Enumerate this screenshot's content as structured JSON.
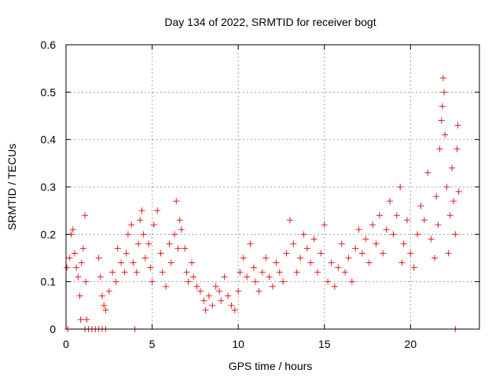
{
  "chart_data": {
    "type": "scatter",
    "title": "Day 134 of 2022, SRMTID for receiver bogt",
    "xlabel": "GPS time / hours",
    "ylabel": "SRMTID / TECUs",
    "xlim": [
      0,
      24
    ],
    "ylim": [
      0,
      0.6
    ],
    "xticks": [
      0,
      5,
      10,
      15,
      20
    ],
    "yticks": [
      0,
      0.1,
      0.2,
      0.3,
      0.4,
      0.5,
      0.6
    ],
    "xtick_labels": [
      "0",
      "5",
      "10",
      "15",
      "20"
    ],
    "ytick_labels": [
      "0",
      "0.1",
      "0.2",
      "0.3",
      "0.4",
      "0.5",
      "0.6"
    ],
    "grid": true,
    "marker": "+",
    "marker_color": "#e41a1c",
    "series": [
      {
        "name": "SRMTID",
        "points": [
          [
            0.05,
            0.13
          ],
          [
            0.1,
            0.0
          ],
          [
            0.2,
            0.15
          ],
          [
            0.3,
            0.2
          ],
          [
            0.4,
            0.21
          ],
          [
            0.5,
            0.16
          ],
          [
            0.6,
            0.13
          ],
          [
            0.7,
            0.11
          ],
          [
            0.8,
            0.07
          ],
          [
            0.85,
            0.02
          ],
          [
            0.9,
            0.14
          ],
          [
            1.0,
            0.17
          ],
          [
            1.1,
            0.24
          ],
          [
            1.15,
            0.1
          ],
          [
            1.2,
            0.02
          ],
          [
            1.1,
            0.0
          ],
          [
            1.3,
            0.0
          ],
          [
            1.5,
            0.0
          ],
          [
            1.7,
            0.0
          ],
          [
            1.9,
            0.0
          ],
          [
            2.1,
            0.0
          ],
          [
            2.3,
            0.0
          ],
          [
            4.0,
            0.0
          ],
          [
            22.6,
            0.0
          ],
          [
            1.9,
            0.15
          ],
          [
            2.0,
            0.11
          ],
          [
            2.1,
            0.07
          ],
          [
            2.2,
            0.05
          ],
          [
            2.3,
            0.04
          ],
          [
            2.5,
            0.08
          ],
          [
            2.7,
            0.12
          ],
          [
            2.9,
            0.1
          ],
          [
            3.0,
            0.17
          ],
          [
            3.2,
            0.14
          ],
          [
            3.4,
            0.12
          ],
          [
            3.5,
            0.16
          ],
          [
            3.6,
            0.2
          ],
          [
            3.8,
            0.22
          ],
          [
            3.9,
            0.14
          ],
          [
            4.1,
            0.12
          ],
          [
            4.2,
            0.18
          ],
          [
            4.3,
            0.23
          ],
          [
            4.4,
            0.25
          ],
          [
            4.5,
            0.2
          ],
          [
            4.6,
            0.15
          ],
          [
            4.8,
            0.18
          ],
          [
            4.9,
            0.13
          ],
          [
            5.0,
            0.1
          ],
          [
            5.1,
            0.22
          ],
          [
            5.3,
            0.25
          ],
          [
            5.5,
            0.16
          ],
          [
            5.6,
            0.12
          ],
          [
            5.8,
            0.09
          ],
          [
            6.0,
            0.18
          ],
          [
            6.1,
            0.14
          ],
          [
            6.3,
            0.2
          ],
          [
            6.4,
            0.27
          ],
          [
            6.5,
            0.17
          ],
          [
            6.6,
            0.23
          ],
          [
            6.7,
            0.21
          ],
          [
            6.9,
            0.17
          ],
          [
            7.0,
            0.12
          ],
          [
            7.1,
            0.1
          ],
          [
            7.3,
            0.14
          ],
          [
            7.4,
            0.11
          ],
          [
            7.6,
            0.09
          ],
          [
            7.8,
            0.08
          ],
          [
            8.0,
            0.06
          ],
          [
            8.1,
            0.04
          ],
          [
            8.3,
            0.07
          ],
          [
            8.5,
            0.05
          ],
          [
            8.7,
            0.09
          ],
          [
            8.9,
            0.08
          ],
          [
            9.0,
            0.06
          ],
          [
            9.2,
            0.11
          ],
          [
            9.4,
            0.07
          ],
          [
            9.6,
            0.05
          ],
          [
            9.8,
            0.04
          ],
          [
            10.0,
            0.08
          ],
          [
            10.1,
            0.12
          ],
          [
            10.3,
            0.15
          ],
          [
            10.5,
            0.11
          ],
          [
            10.7,
            0.18
          ],
          [
            10.9,
            0.13
          ],
          [
            11.0,
            0.1
          ],
          [
            11.2,
            0.08
          ],
          [
            11.4,
            0.12
          ],
          [
            11.6,
            0.15
          ],
          [
            11.8,
            0.11
          ],
          [
            12.0,
            0.09
          ],
          [
            12.2,
            0.14
          ],
          [
            12.4,
            0.12
          ],
          [
            12.6,
            0.1
          ],
          [
            12.8,
            0.16
          ],
          [
            13.0,
            0.23
          ],
          [
            13.2,
            0.18
          ],
          [
            13.4,
            0.12
          ],
          [
            13.6,
            0.15
          ],
          [
            13.8,
            0.2
          ],
          [
            14.0,
            0.17
          ],
          [
            14.2,
            0.14
          ],
          [
            14.4,
            0.19
          ],
          [
            14.6,
            0.12
          ],
          [
            14.8,
            0.16
          ],
          [
            15.0,
            0.22
          ],
          [
            15.2,
            0.1
          ],
          [
            15.4,
            0.14
          ],
          [
            15.6,
            0.09
          ],
          [
            15.8,
            0.13
          ],
          [
            16.0,
            0.18
          ],
          [
            16.2,
            0.12
          ],
          [
            16.4,
            0.15
          ],
          [
            16.6,
            0.1
          ],
          [
            16.8,
            0.17
          ],
          [
            17.0,
            0.21
          ],
          [
            17.2,
            0.16
          ],
          [
            17.4,
            0.19
          ],
          [
            17.6,
            0.14
          ],
          [
            17.8,
            0.22
          ],
          [
            18.0,
            0.18
          ],
          [
            18.2,
            0.24
          ],
          [
            18.4,
            0.16
          ],
          [
            18.6,
            0.21
          ],
          [
            18.8,
            0.27
          ],
          [
            19.0,
            0.2
          ],
          [
            19.2,
            0.24
          ],
          [
            19.4,
            0.3
          ],
          [
            19.5,
            0.14
          ],
          [
            19.6,
            0.18
          ],
          [
            19.8,
            0.23
          ],
          [
            20.0,
            0.16
          ],
          [
            20.2,
            0.13
          ],
          [
            20.4,
            0.2
          ],
          [
            20.6,
            0.26
          ],
          [
            20.8,
            0.23
          ],
          [
            21.0,
            0.33
          ],
          [
            21.2,
            0.19
          ],
          [
            21.4,
            0.15
          ],
          [
            21.5,
            0.28
          ],
          [
            21.6,
            0.22
          ],
          [
            21.7,
            0.38
          ],
          [
            21.8,
            0.44
          ],
          [
            21.85,
            0.47
          ],
          [
            21.9,
            0.53
          ],
          [
            21.95,
            0.5
          ],
          [
            22.0,
            0.41
          ],
          [
            22.1,
            0.3
          ],
          [
            22.2,
            0.16
          ],
          [
            22.3,
            0.24
          ],
          [
            22.4,
            0.34
          ],
          [
            22.5,
            0.27
          ],
          [
            22.6,
            0.2
          ],
          [
            22.7,
            0.38
          ],
          [
            22.75,
            0.43
          ],
          [
            22.8,
            0.29
          ]
        ]
      }
    ]
  }
}
